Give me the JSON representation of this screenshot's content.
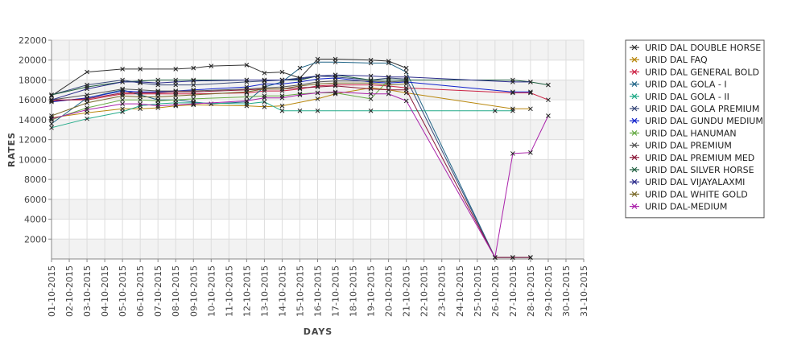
{
  "chart_data": {
    "type": "line",
    "xlabel": "DAYS",
    "ylabel": "RATES",
    "ylim": [
      0,
      22000
    ],
    "y_ticks": [
      2000,
      4000,
      6000,
      8000,
      10000,
      12000,
      14000,
      16000,
      18000,
      20000,
      22000
    ],
    "x_ticks": [
      "01-10-2015",
      "02-10-2015",
      "03-10-2015",
      "04-10-2015",
      "05-10-2015",
      "06-10-2015",
      "07-10-2015",
      "08-10-2015",
      "09-10-2015",
      "10-10-2015",
      "11-10-2015",
      "12-10-2015",
      "13-10-2015",
      "14-10-2015",
      "15-10-2015",
      "16-10-2015",
      "17-10-2015",
      "18-10-2015",
      "19-10-2015",
      "20-10-2015",
      "21-10-2015",
      "22-10-2015",
      "23-10-2015",
      "24-10-2015",
      "25-10-2015",
      "26-10-2015",
      "27-10-2015",
      "28-10-2015",
      "29-10-2015",
      "30-10-2015",
      "31-10-2015"
    ],
    "grid": true,
    "alternating_bands": true,
    "marker": "x",
    "legend_position": "right",
    "series": [
      {
        "name": "URID DAL DOUBLE HORSE",
        "color": "#333333",
        "points": [
          [
            "01-10-2015",
            16400
          ],
          [
            "03-10-2015",
            18800
          ],
          [
            "05-10-2015",
            19100
          ],
          [
            "06-10-2015",
            19100
          ],
          [
            "08-10-2015",
            19100
          ],
          [
            "09-10-2015",
            19200
          ],
          [
            "10-10-2015",
            19400
          ],
          [
            "12-10-2015",
            19500
          ],
          [
            "13-10-2015",
            18700
          ],
          [
            "14-10-2015",
            18800
          ],
          [
            "15-10-2015",
            18200
          ],
          [
            "16-10-2015",
            20100
          ],
          [
            "17-10-2015",
            20100
          ],
          [
            "19-10-2015",
            20000
          ],
          [
            "20-10-2015",
            19900
          ],
          [
            "21-10-2015",
            19200
          ]
        ]
      },
      {
        "name": "URID DAL FAQ",
        "color": "#b8860b",
        "points": [
          [
            "01-10-2015",
            14200
          ],
          [
            "03-10-2015",
            14700
          ],
          [
            "05-10-2015",
            15100
          ],
          [
            "06-10-2015",
            15100
          ],
          [
            "07-10-2015",
            15200
          ],
          [
            "08-10-2015",
            15400
          ],
          [
            "09-10-2015",
            15500
          ],
          [
            "12-10-2015",
            15400
          ],
          [
            "13-10-2015",
            15300
          ],
          [
            "14-10-2015",
            15400
          ],
          [
            "16-10-2015",
            16100
          ],
          [
            "17-10-2015",
            16600
          ],
          [
            "19-10-2015",
            17200
          ],
          [
            "20-10-2015",
            17000
          ],
          [
            "21-10-2015",
            16700
          ],
          [
            "27-10-2015",
            15100
          ],
          [
            "28-10-2015",
            15100
          ]
        ]
      },
      {
        "name": "URID DAL GENERAL BOLD",
        "color": "#cc2244",
        "points": [
          [
            "01-10-2015",
            16000
          ],
          [
            "03-10-2015",
            16000
          ],
          [
            "05-10-2015",
            16600
          ],
          [
            "06-10-2015",
            16600
          ],
          [
            "07-10-2015",
            16600
          ],
          [
            "08-10-2015",
            16600
          ],
          [
            "09-10-2015",
            16600
          ],
          [
            "12-10-2015",
            16700
          ],
          [
            "13-10-2015",
            16900
          ],
          [
            "14-10-2015",
            16900
          ],
          [
            "15-10-2015",
            17100
          ],
          [
            "16-10-2015",
            17400
          ],
          [
            "17-10-2015",
            17500
          ],
          [
            "19-10-2015",
            17500
          ],
          [
            "20-10-2015",
            17400
          ],
          [
            "21-10-2015",
            17200
          ],
          [
            "27-10-2015",
            16700
          ],
          [
            "28-10-2015",
            16700
          ],
          [
            "29-10-2015",
            16000
          ]
        ]
      },
      {
        "name": "URID DAL GOLA - I",
        "color": "#226688",
        "points": [
          [
            "01-10-2015",
            13600
          ],
          [
            "03-10-2015",
            16200
          ],
          [
            "05-10-2015",
            17000
          ],
          [
            "06-10-2015",
            16500
          ],
          [
            "07-10-2015",
            16000
          ],
          [
            "08-10-2015",
            16000
          ],
          [
            "09-10-2015",
            15800
          ],
          [
            "10-10-2015",
            15600
          ],
          [
            "12-10-2015",
            15800
          ],
          [
            "13-10-2015",
            17300
          ],
          [
            "14-10-2015",
            17800
          ],
          [
            "15-10-2015",
            19200
          ],
          [
            "16-10-2015",
            19800
          ],
          [
            "17-10-2015",
            19800
          ],
          [
            "19-10-2015",
            19700
          ],
          [
            "20-10-2015",
            19700
          ],
          [
            "21-10-2015",
            18800
          ],
          [
            "26-10-2015",
            150
          ],
          [
            "27-10-2015",
            150
          ],
          [
            "28-10-2015",
            150
          ]
        ]
      },
      {
        "name": "URID DAL GOLA - II",
        "color": "#22aa88",
        "points": [
          [
            "01-10-2015",
            13200
          ],
          [
            "03-10-2015",
            14100
          ],
          [
            "05-10-2015",
            14800
          ],
          [
            "06-10-2015",
            15400
          ],
          [
            "07-10-2015",
            15600
          ],
          [
            "08-10-2015",
            15700
          ],
          [
            "09-10-2015",
            15700
          ],
          [
            "12-10-2015",
            15600
          ],
          [
            "13-10-2015",
            15800
          ],
          [
            "14-10-2015",
            14900
          ],
          [
            "15-10-2015",
            14900
          ],
          [
            "16-10-2015",
            14900
          ],
          [
            "19-10-2015",
            14900
          ],
          [
            "26-10-2015",
            14900
          ],
          [
            "27-10-2015",
            14900
          ]
        ]
      },
      {
        "name": "URID DAL GOLA PREMIUM",
        "color": "#3a4a7a",
        "points": [
          [
            "01-10-2015",
            16500
          ],
          [
            "03-10-2015",
            17500
          ],
          [
            "05-10-2015",
            18000
          ],
          [
            "06-10-2015",
            17700
          ],
          [
            "07-10-2015",
            17500
          ],
          [
            "08-10-2015",
            17500
          ],
          [
            "09-10-2015",
            17500
          ],
          [
            "12-10-2015",
            17800
          ],
          [
            "13-10-2015",
            17900
          ],
          [
            "14-10-2015",
            18000
          ],
          [
            "15-10-2015",
            18200
          ],
          [
            "16-10-2015",
            18400
          ],
          [
            "17-10-2015",
            18300
          ],
          [
            "19-10-2015",
            18000
          ],
          [
            "20-10-2015",
            18200
          ],
          [
            "21-10-2015",
            18100
          ],
          [
            "26-10-2015",
            150
          ],
          [
            "27-10-2015",
            150
          ],
          [
            "28-10-2015",
            150
          ]
        ]
      },
      {
        "name": "URID DAL GUNDU MEDIUM",
        "color": "#1122cc",
        "points": [
          [
            "01-10-2015",
            15800
          ],
          [
            "03-10-2015",
            16200
          ],
          [
            "05-10-2015",
            16900
          ],
          [
            "06-10-2015",
            16800
          ],
          [
            "07-10-2015",
            16800
          ],
          [
            "08-10-2015",
            16900
          ],
          [
            "09-10-2015",
            17000
          ],
          [
            "12-10-2015",
            17300
          ],
          [
            "13-10-2015",
            17600
          ],
          [
            "14-10-2015",
            17600
          ],
          [
            "15-10-2015",
            17800
          ],
          [
            "16-10-2015",
            18100
          ],
          [
            "17-10-2015",
            18200
          ],
          [
            "19-10-2015",
            17800
          ],
          [
            "20-10-2015",
            17700
          ],
          [
            "21-10-2015",
            17800
          ],
          [
            "27-10-2015",
            16800
          ],
          [
            "28-10-2015",
            16800
          ]
        ]
      },
      {
        "name": "URID DAL HANUMAN",
        "color": "#66aa44",
        "points": [
          [
            "01-10-2015",
            14000
          ],
          [
            "03-10-2015",
            15200
          ],
          [
            "05-10-2015",
            16000
          ],
          [
            "06-10-2015",
            16000
          ],
          [
            "07-10-2015",
            15900
          ],
          [
            "08-10-2015",
            16000
          ],
          [
            "09-10-2015",
            16100
          ],
          [
            "12-10-2015",
            16300
          ],
          [
            "13-10-2015",
            16400
          ],
          [
            "14-10-2015",
            16400
          ],
          [
            "15-10-2015",
            16600
          ],
          [
            "16-10-2015",
            16700
          ],
          [
            "17-10-2015",
            16700
          ],
          [
            "19-10-2015",
            16100
          ],
          [
            "20-10-2015",
            18000
          ],
          [
            "21-10-2015",
            18000
          ]
        ]
      },
      {
        "name": "URID DAL PREMIUM",
        "color": "#555555",
        "points": [
          [
            "01-10-2015",
            16000
          ],
          [
            "03-10-2015",
            16500
          ],
          [
            "05-10-2015",
            17100
          ],
          [
            "06-10-2015",
            17000
          ],
          [
            "07-10-2015",
            16900
          ],
          [
            "08-10-2015",
            16900
          ],
          [
            "09-10-2015",
            16900
          ],
          [
            "12-10-2015",
            17100
          ],
          [
            "13-10-2015",
            17200
          ],
          [
            "14-10-2015",
            17300
          ],
          [
            "15-10-2015",
            17500
          ],
          [
            "16-10-2015",
            17800
          ],
          [
            "17-10-2015",
            17900
          ],
          [
            "19-10-2015",
            17900
          ],
          [
            "20-10-2015",
            17800
          ],
          [
            "21-10-2015",
            17900
          ]
        ]
      },
      {
        "name": "URID DAL PREMIUM MED",
        "color": "#8b1a3a",
        "points": [
          [
            "01-10-2015",
            15900
          ],
          [
            "03-10-2015",
            16100
          ],
          [
            "05-10-2015",
            16700
          ],
          [
            "06-10-2015",
            16700
          ],
          [
            "07-10-2015",
            16700
          ],
          [
            "08-10-2015",
            16800
          ],
          [
            "09-10-2015",
            16800
          ],
          [
            "12-10-2015",
            17000
          ],
          [
            "13-10-2015",
            17100
          ],
          [
            "14-10-2015",
            17100
          ],
          [
            "15-10-2015",
            17200
          ],
          [
            "16-10-2015",
            17300
          ],
          [
            "17-10-2015",
            17400
          ],
          [
            "19-10-2015",
            17100
          ],
          [
            "20-10-2015",
            17000
          ],
          [
            "21-10-2015",
            17000
          ],
          [
            "26-10-2015",
            150
          ],
          [
            "27-10-2015",
            150
          ],
          [
            "28-10-2015",
            150
          ]
        ]
      },
      {
        "name": "URID DAL SILVER HORSE",
        "color": "#1f5f3f",
        "points": [
          [
            "01-10-2015",
            16500
          ],
          [
            "03-10-2015",
            17300
          ],
          [
            "05-10-2015",
            17800
          ],
          [
            "06-10-2015",
            17900
          ],
          [
            "07-10-2015",
            18000
          ],
          [
            "08-10-2015",
            18000
          ],
          [
            "09-10-2015",
            18000
          ],
          [
            "12-10-2015",
            18000
          ],
          [
            "13-10-2015",
            18000
          ],
          [
            "14-10-2015",
            18000
          ],
          [
            "15-10-2015",
            18000
          ],
          [
            "16-10-2015",
            18400
          ],
          [
            "17-10-2015",
            18500
          ],
          [
            "19-10-2015",
            18000
          ],
          [
            "20-10-2015",
            18000
          ],
          [
            "21-10-2015",
            18000
          ],
          [
            "27-10-2015",
            18000
          ],
          [
            "28-10-2015",
            17800
          ],
          [
            "29-10-2015",
            17500
          ]
        ]
      },
      {
        "name": "URID DAL VIJAYALAXMI",
        "color": "#2a2a8a",
        "points": [
          [
            "01-10-2015",
            16000
          ],
          [
            "03-10-2015",
            17100
          ],
          [
            "05-10-2015",
            17800
          ],
          [
            "06-10-2015",
            17800
          ],
          [
            "07-10-2015",
            17700
          ],
          [
            "08-10-2015",
            17800
          ],
          [
            "09-10-2015",
            17900
          ],
          [
            "12-10-2015",
            18000
          ],
          [
            "13-10-2015",
            18000
          ],
          [
            "14-10-2015",
            18000
          ],
          [
            "15-10-2015",
            18100
          ],
          [
            "16-10-2015",
            18400
          ],
          [
            "17-10-2015",
            18500
          ],
          [
            "19-10-2015",
            18400
          ],
          [
            "20-10-2015",
            18300
          ],
          [
            "21-10-2015",
            18300
          ],
          [
            "27-10-2015",
            17800
          ],
          [
            "28-10-2015",
            17800
          ]
        ]
      },
      {
        "name": "URID DAL WHITE GOLD",
        "color": "#7a6a2a",
        "points": [
          [
            "01-10-2015",
            14400
          ],
          [
            "03-10-2015",
            15700
          ],
          [
            "05-10-2015",
            16400
          ],
          [
            "06-10-2015",
            16300
          ],
          [
            "07-10-2015",
            16300
          ],
          [
            "08-10-2015",
            16400
          ],
          [
            "09-10-2015",
            16500
          ],
          [
            "12-10-2015",
            16800
          ],
          [
            "13-10-2015",
            17100
          ],
          [
            "14-10-2015",
            17100
          ],
          [
            "15-10-2015",
            17400
          ],
          [
            "16-10-2015",
            17600
          ],
          [
            "17-10-2015",
            17700
          ],
          [
            "19-10-2015",
            17700
          ],
          [
            "20-10-2015",
            17500
          ],
          [
            "21-10-2015",
            17600
          ]
        ]
      },
      {
        "name": "URID DAL-MEDIUM",
        "color": "#aa22aa",
        "points": [
          [
            "01-10-2015",
            14100
          ],
          [
            "03-10-2015",
            15000
          ],
          [
            "05-10-2015",
            15600
          ],
          [
            "06-10-2015",
            15600
          ],
          [
            "07-10-2015",
            15400
          ],
          [
            "08-10-2015",
            15500
          ],
          [
            "09-10-2015",
            15600
          ],
          [
            "12-10-2015",
            15900
          ],
          [
            "13-10-2015",
            16200
          ],
          [
            "14-10-2015",
            16200
          ],
          [
            "15-10-2015",
            16500
          ],
          [
            "16-10-2015",
            16700
          ],
          [
            "17-10-2015",
            16800
          ],
          [
            "19-10-2015",
            16600
          ],
          [
            "20-10-2015",
            16600
          ],
          [
            "21-10-2015",
            15900
          ],
          [
            "26-10-2015",
            150
          ],
          [
            "27-10-2015",
            10600
          ],
          [
            "28-10-2015",
            10700
          ],
          [
            "29-10-2015",
            14400
          ]
        ]
      }
    ]
  }
}
